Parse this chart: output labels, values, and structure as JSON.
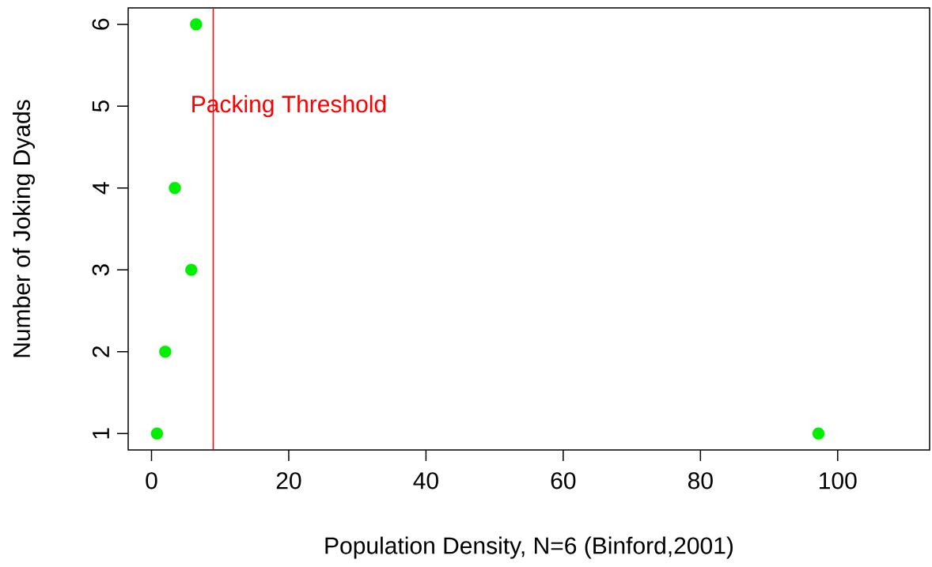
{
  "chart_data": {
    "type": "scatter",
    "xlabel": "Population Density, N=6 (Binford,2001)",
    "ylabel": "Number of Joking Dyads",
    "x": [
      0.8,
      2,
      5.8,
      3.4,
      6.5,
      97.2
    ],
    "values": [
      1,
      2,
      3,
      4,
      6,
      1
    ],
    "color": "#00ee00",
    "marker": "circle",
    "xlim": [
      -3.4,
      113.4
    ],
    "ylim": [
      0.8,
      6.2
    ],
    "xticks": [
      0,
      20,
      40,
      60,
      80,
      100
    ],
    "yticks": [
      1,
      2,
      3,
      4,
      5,
      6
    ],
    "ref_lines": [
      {
        "axis": "x",
        "value": 9,
        "label": "Packing Threshold",
        "color": "#ff0000"
      }
    ],
    "grid": false
  }
}
